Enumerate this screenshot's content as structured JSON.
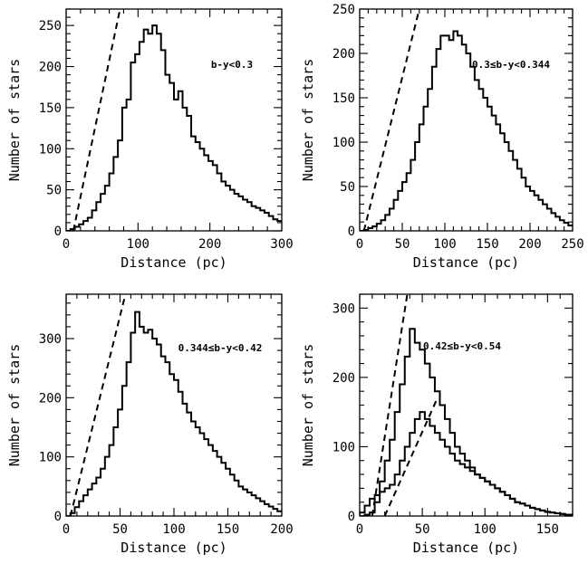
{
  "chart_data": [
    {
      "type": "histogram",
      "annotation": "b-y<0.3",
      "xlabel": "Distance (pc)",
      "ylabel": "Number of stars",
      "xlim": [
        0,
        300
      ],
      "ylim": [
        0,
        270
      ],
      "xticks": [
        0,
        100,
        200,
        300
      ],
      "yticks": [
        0,
        50,
        100,
        150,
        200,
        250
      ],
      "bin_width": 6,
      "series": [
        {
          "values": [
            0,
            2,
            5,
            8,
            12,
            16,
            25,
            35,
            45,
            55,
            70,
            90,
            110,
            150,
            160,
            205,
            215,
            230,
            245,
            240,
            250,
            240,
            220,
            190,
            180,
            160,
            170,
            150,
            140,
            115,
            108,
            100,
            92,
            85,
            80,
            70,
            60,
            55,
            50,
            45,
            42,
            38,
            35,
            30,
            28,
            25,
            22,
            18,
            14,
            12
          ]
        }
      ],
      "fit_lines": [
        {
          "x": [
            10,
            75
          ],
          "y": [
            0,
            270
          ]
        }
      ]
    },
    {
      "type": "histogram",
      "annotation": "0.3≤b-y<0.344",
      "xlabel": "Distance (pc)",
      "ylabel": "Number of stars",
      "xlim": [
        0,
        250
      ],
      "ylim": [
        0,
        250
      ],
      "xticks": [
        0,
        50,
        100,
        150,
        200,
        250
      ],
      "yticks": [
        0,
        50,
        100,
        150,
        200,
        250
      ],
      "bin_width": 5,
      "series": [
        {
          "values": [
            0,
            1,
            3,
            5,
            8,
            12,
            18,
            25,
            35,
            45,
            55,
            65,
            80,
            100,
            120,
            140,
            160,
            185,
            205,
            220,
            220,
            215,
            225,
            220,
            210,
            200,
            185,
            170,
            160,
            150,
            140,
            130,
            120,
            110,
            100,
            90,
            80,
            70,
            60,
            50,
            45,
            40,
            35,
            30,
            25,
            20,
            16,
            12,
            9,
            6
          ]
        }
      ],
      "fit_lines": [
        {
          "x": [
            5,
            70
          ],
          "y": [
            0,
            250
          ]
        }
      ]
    },
    {
      "type": "histogram",
      "annotation": "0.344≤b-y<0.42",
      "xlabel": "Distance (pc)",
      "ylabel": "Number of stars",
      "xlim": [
        0,
        200
      ],
      "ylim": [
        0,
        375
      ],
      "xticks": [
        0,
        50,
        100,
        150,
        200
      ],
      "yticks": [
        0,
        100,
        200,
        300
      ],
      "bin_width": 4,
      "series": [
        {
          "values": [
            0,
            5,
            15,
            25,
            35,
            45,
            55,
            65,
            80,
            100,
            120,
            150,
            180,
            220,
            260,
            310,
            345,
            320,
            310,
            315,
            300,
            290,
            270,
            260,
            240,
            230,
            210,
            190,
            175,
            160,
            150,
            140,
            130,
            120,
            110,
            100,
            90,
            80,
            70,
            60,
            50,
            45,
            40,
            35,
            30,
            25,
            20,
            16,
            12,
            8
          ]
        }
      ],
      "fit_lines": [
        {
          "x": [
            4,
            55
          ],
          "y": [
            0,
            375
          ]
        }
      ]
    },
    {
      "type": "histogram",
      "annotation": "0.42≤b-y<0.54",
      "xlabel": "Distance (pc)",
      "ylabel": "Number of stars",
      "xlim": [
        0,
        170
      ],
      "ylim": [
        0,
        320
      ],
      "xticks": [
        0,
        50,
        100,
        150
      ],
      "yticks": [
        0,
        100,
        200,
        300
      ],
      "bin_width": 4,
      "series": [
        {
          "values": [
            0,
            2,
            5,
            20,
            50,
            80,
            110,
            150,
            190,
            230,
            270,
            250,
            240,
            220,
            200,
            180,
            160,
            140,
            120,
            100,
            90,
            80,
            70,
            60,
            55,
            50,
            45,
            40,
            35,
            30,
            25,
            20,
            18,
            15,
            12,
            10,
            8,
            6,
            5,
            4,
            3,
            2,
            2
          ]
        },
        {
          "values": [
            5,
            15,
            25,
            30,
            35,
            40,
            45,
            60,
            80,
            100,
            120,
            140,
            150,
            140,
            130,
            120,
            110,
            100,
            90,
            80,
            75,
            70,
            65,
            60,
            55,
            50,
            45,
            40,
            35,
            30,
            25,
            20,
            18,
            15,
            12,
            10,
            8,
            6,
            5,
            4,
            3,
            2,
            2
          ]
        }
      ],
      "fit_lines": [
        {
          "x": [
            10,
            38
          ],
          "y": [
            0,
            320
          ]
        },
        {
          "x": [
            20,
            62
          ],
          "y": [
            0,
            170
          ]
        }
      ]
    }
  ]
}
